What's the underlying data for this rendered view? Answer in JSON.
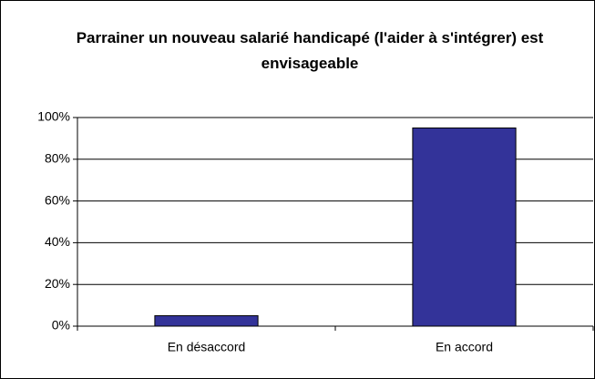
{
  "chart_data": {
    "type": "bar",
    "title": "Parrainer un nouveau salarié handicapé (l'aider à s'intégrer) est envisageable",
    "categories": [
      "En désaccord",
      "En accord"
    ],
    "values": [
      5,
      95
    ],
    "color": "#333399",
    "ylim": [
      0,
      100
    ],
    "yticks": [
      {
        "value": 0,
        "label": "0%"
      },
      {
        "value": 20,
        "label": "20%"
      },
      {
        "value": 40,
        "label": "40%"
      },
      {
        "value": 60,
        "label": "60%"
      },
      {
        "value": 80,
        "label": "80%"
      },
      {
        "value": 100,
        "label": "100%"
      }
    ],
    "grid": true
  }
}
